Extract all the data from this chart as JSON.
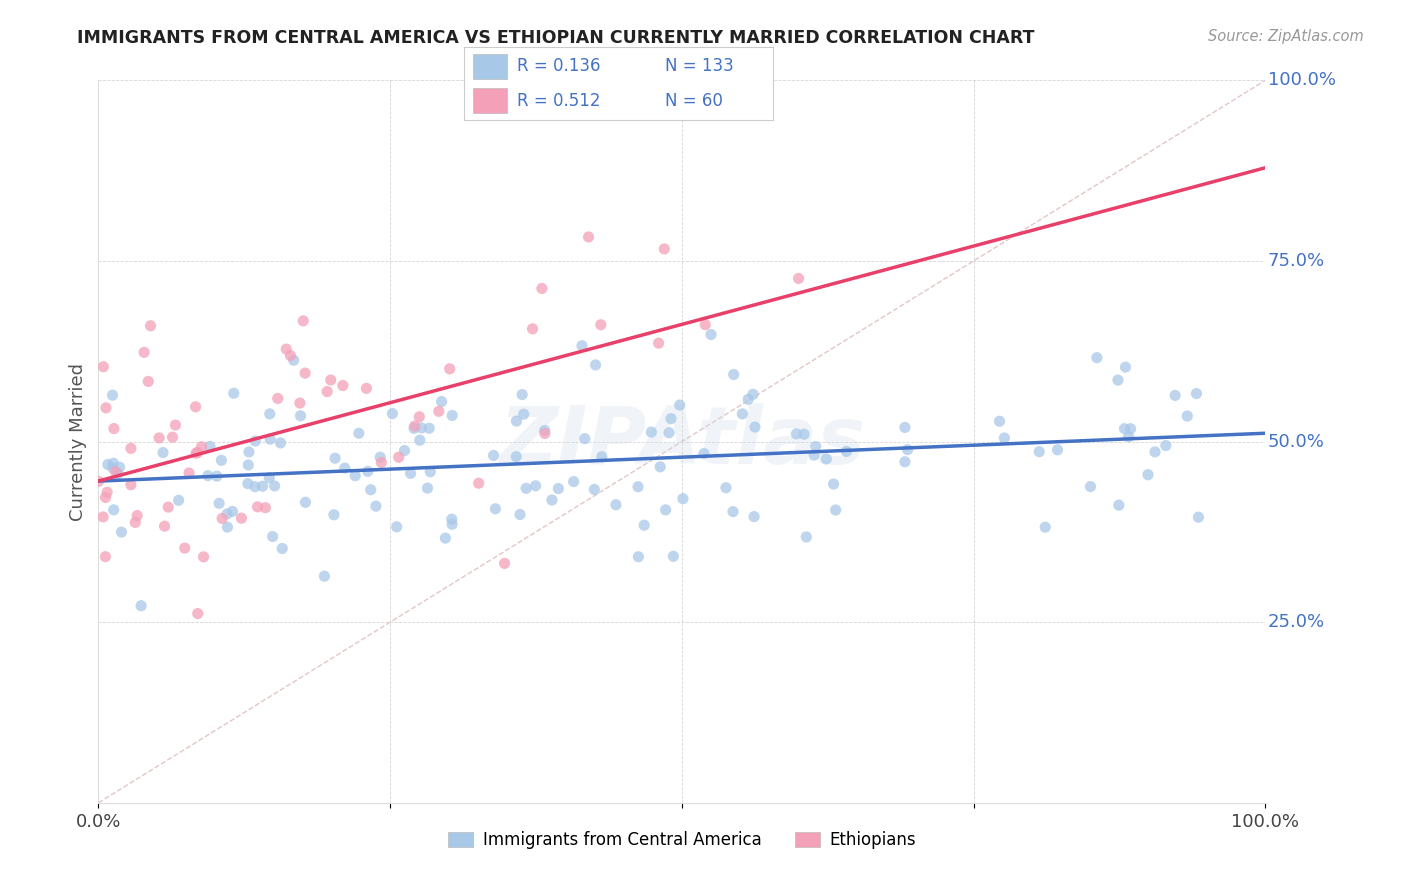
{
  "title": "IMMIGRANTS FROM CENTRAL AMERICA VS ETHIOPIAN CURRENTLY MARRIED CORRELATION CHART",
  "source": "Source: ZipAtlas.com",
  "ylabel": "Currently Married",
  "blue_R": 0.136,
  "blue_N": 133,
  "pink_R": 0.512,
  "pink_N": 60,
  "blue_color": "#A8C8E8",
  "pink_color": "#F4A0B8",
  "blue_line_color": "#4472C4",
  "pink_line_color": "#E8406A",
  "diag_line_color": "#E0C0C0",
  "watermark": "ZIPAtlas",
  "legend_label_blue": "Immigrants from Central America",
  "legend_label_pink": "Ethiopians"
}
